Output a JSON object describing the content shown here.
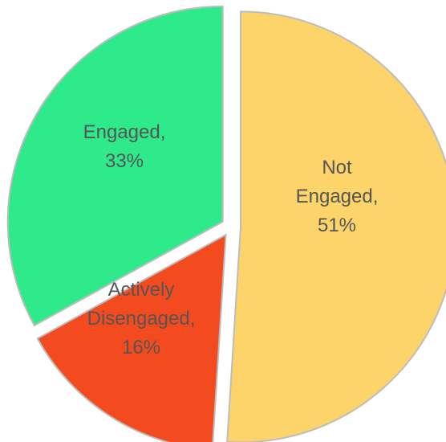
{
  "chart_data": {
    "type": "pie",
    "title": "",
    "slices": [
      {
        "name": "Not Engaged",
        "percent_label": "51%",
        "value": 51,
        "color": "#FCD46A",
        "label_lines": [
          "Not",
          "Engaged,",
          "51%"
        ]
      },
      {
        "name": "Actively Disengaged",
        "percent_label": "16%",
        "value": 16,
        "color": "#F34B1F",
        "label_lines": [
          "Actively",
          "Disengaged,",
          "16%"
        ]
      },
      {
        "name": "Engaged",
        "percent_label": "33%",
        "value": 33,
        "color": "#2EEA8A",
        "label_lines": [
          "Engaged,",
          "33%"
        ]
      }
    ],
    "exploded": true,
    "legend": "none"
  }
}
